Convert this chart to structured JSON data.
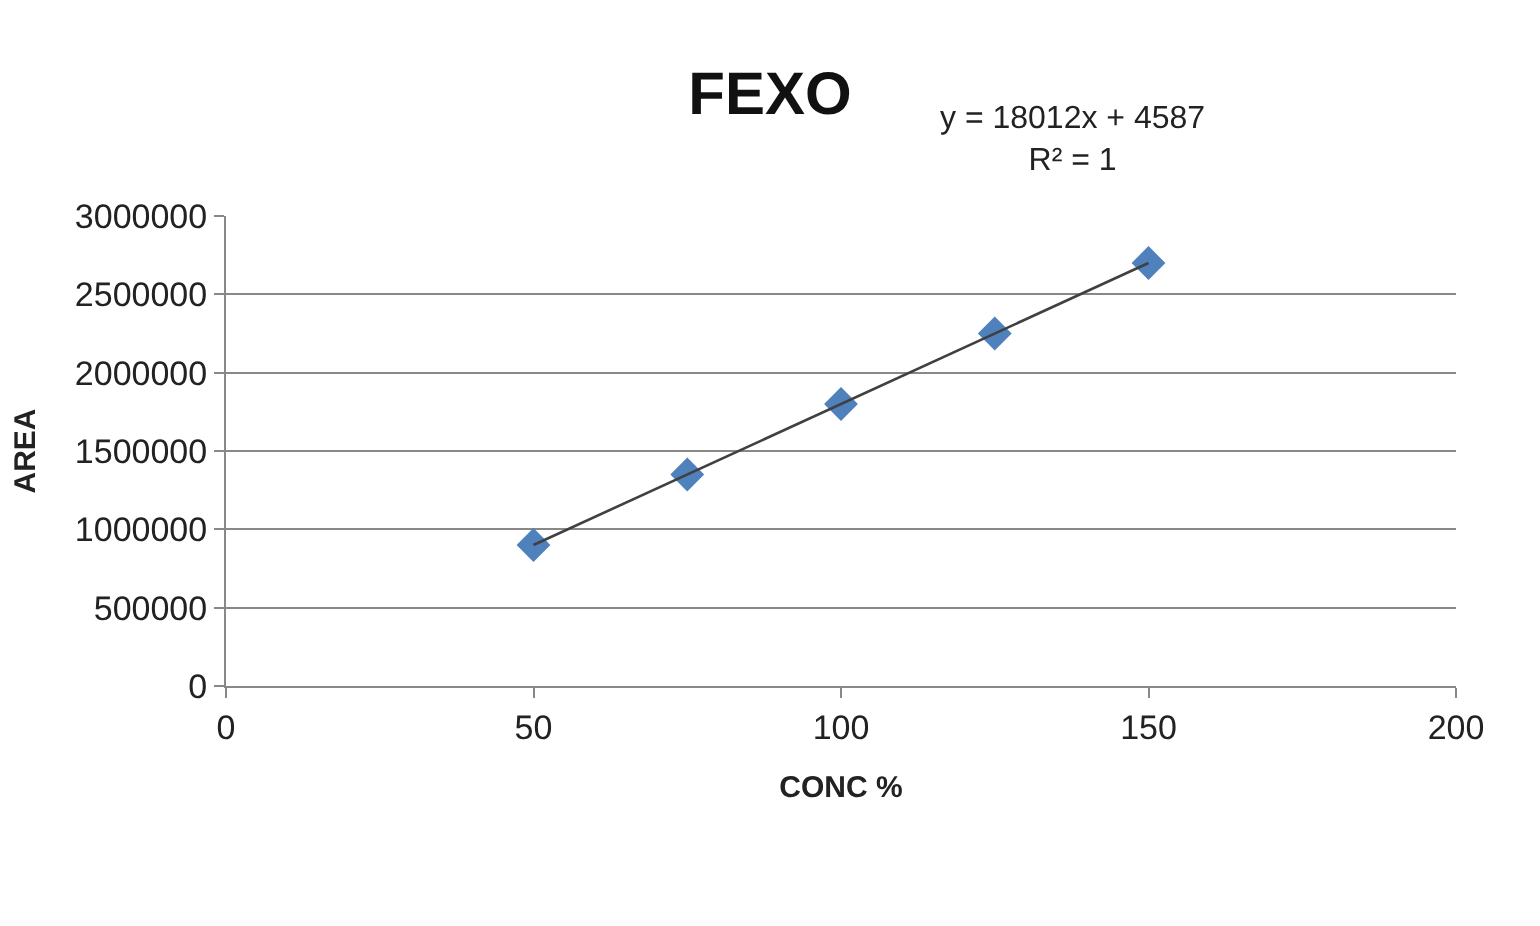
{
  "chart_data": {
    "type": "scatter",
    "title": "FEXO",
    "xlabel": "CONC %",
    "ylabel": "AREA",
    "x": [
      50,
      75,
      100,
      125,
      150
    ],
    "series": [
      {
        "color": "#4f81bd",
        "marker": "diamond",
        "values": [
          900000,
          1350000,
          1800000,
          2250000,
          2700000
        ]
      },
      {
        "type": "line",
        "color": "#404040",
        "marker": "none",
        "x": [
          50,
          150
        ],
        "values": [
          900000,
          2700000
        ]
      }
    ],
    "annotations": [
      "y = 18012x + 4587",
      "R² = 1"
    ],
    "xlim": [
      0,
      200
    ],
    "xticks": [
      0,
      50,
      100,
      150,
      200
    ],
    "ylim": [
      0,
      3000000
    ],
    "yticks": [
      0,
      500000,
      1000000,
      1500000,
      2000000,
      2500000,
      3000000
    ],
    "grid": "y"
  }
}
